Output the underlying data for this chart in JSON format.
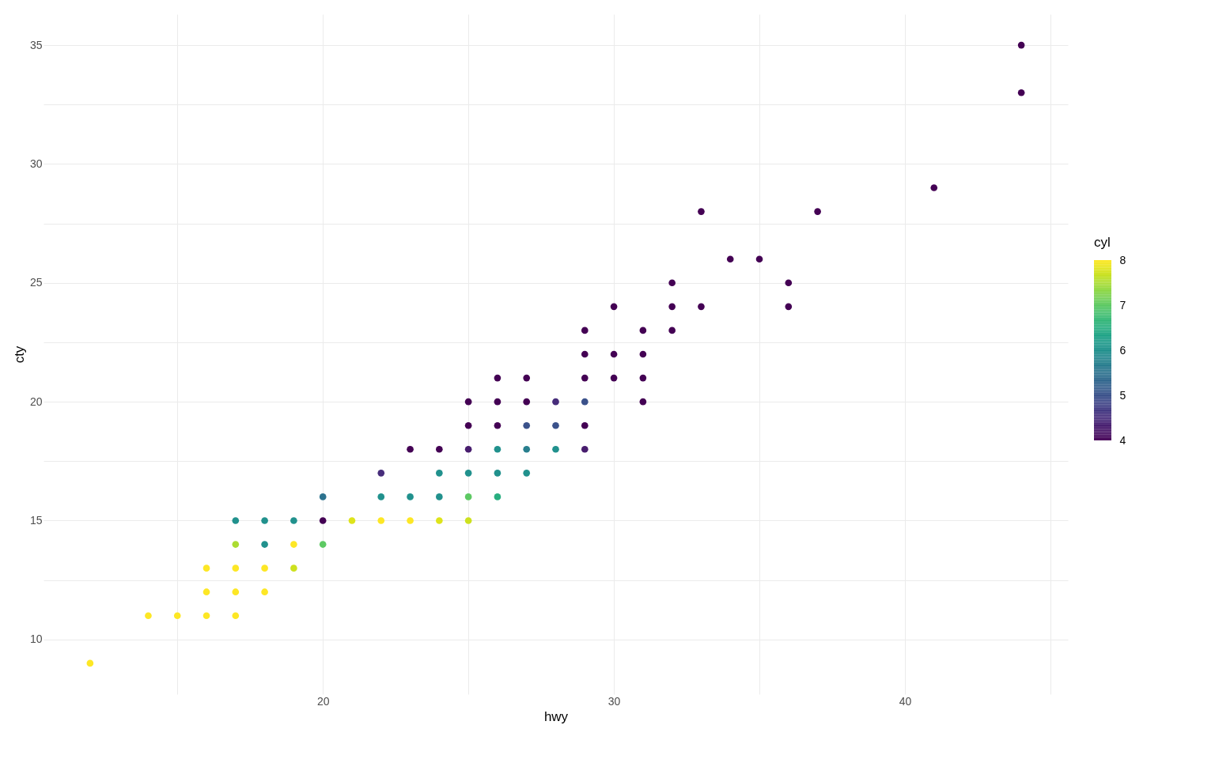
{
  "chart_data": {
    "type": "scatter",
    "xlabel": "hwy",
    "ylabel": "cty",
    "legend_title": "cyl",
    "x": [
      44,
      44,
      41,
      33,
      37,
      34,
      35,
      32,
      36,
      30,
      32,
      33,
      36,
      29,
      31,
      32,
      29,
      30,
      31,
      26,
      27,
      29,
      30,
      31,
      25,
      26,
      27,
      28,
      29,
      31,
      25,
      26,
      27,
      28,
      29,
      23,
      24,
      25,
      26,
      27,
      28,
      29,
      22,
      24,
      25,
      26,
      27,
      20,
      22,
      23,
      24,
      25,
      26,
      17,
      18,
      19,
      20,
      21,
      22,
      23,
      24,
      25,
      17,
      18,
      19,
      20,
      16,
      17,
      18,
      19,
      16,
      17,
      18,
      14,
      15,
      16,
      17,
      12
    ],
    "values": [
      35,
      33,
      29,
      28,
      28,
      26,
      26,
      25,
      25,
      24,
      24,
      24,
      24,
      23,
      23,
      23,
      22,
      22,
      22,
      21,
      21,
      21,
      21,
      21,
      20,
      20,
      20,
      20,
      20,
      20,
      19,
      19,
      19,
      19,
      19,
      18,
      18,
      18,
      18,
      18,
      18,
      18,
      17,
      17,
      17,
      17,
      17,
      16,
      16,
      16,
      16,
      16,
      16,
      15,
      15,
      15,
      15,
      15,
      15,
      15,
      15,
      15,
      14,
      14,
      14,
      14,
      13,
      13,
      13,
      13,
      12,
      12,
      12,
      11,
      11,
      11,
      11,
      9
    ],
    "cvalues": [
      4,
      4,
      4,
      4,
      4,
      4,
      4,
      4,
      4,
      4,
      4,
      4,
      4,
      4,
      4,
      4,
      4,
      4,
      4,
      4,
      4,
      4,
      4,
      4,
      4,
      4,
      4,
      4.5,
      5,
      4,
      4,
      4,
      5,
      5,
      4,
      4,
      4,
      4.3,
      6,
      5.7,
      6,
      4.3,
      4.5,
      6,
      6,
      6,
      6,
      5.5,
      6,
      6,
      6,
      7,
      6.5,
      6,
      6,
      6,
      4,
      7.8,
      8,
      8,
      7.8,
      7.7,
      7.5,
      6,
      8,
      7,
      8,
      8,
      8,
      7.7,
      8,
      8,
      8,
      8,
      8,
      8,
      8,
      8
    ],
    "clim": [
      4,
      8
    ],
    "cticks": [
      4,
      5,
      6,
      7,
      8
    ],
    "xlim": [
      10.4,
      45.6
    ],
    "xticks": [
      {
        "value": 15,
        "label": null
      },
      20,
      {
        "value": 25,
        "label": null
      },
      30,
      {
        "value": 35,
        "label": null
      },
      40,
      {
        "value": 45,
        "label": null
      }
    ],
    "ylim": [
      7.7,
      36.3
    ],
    "yticks": [
      10,
      {
        "value": 12.5,
        "label": null
      },
      15,
      {
        "value": 17.5,
        "label": null
      },
      20,
      {
        "value": 22.5,
        "label": null
      },
      25,
      {
        "value": 27.5,
        "label": null
      },
      30,
      {
        "value": 32.5,
        "label": null
      },
      35
    ],
    "grid": true,
    "marker": "circle"
  }
}
